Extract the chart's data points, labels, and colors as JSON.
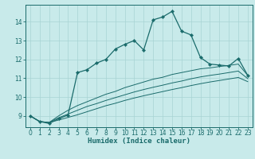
{
  "xlabel": "Humidex (Indice chaleur)",
  "background_color": "#c8eaea",
  "line_color": "#1a6b6b",
  "grid_color": "#a8d4d4",
  "x_data": [
    0,
    1,
    2,
    3,
    4,
    5,
    6,
    7,
    8,
    9,
    10,
    11,
    12,
    13,
    14,
    15,
    16,
    17,
    18,
    19,
    20,
    21,
    22,
    23
  ],
  "y_main": [
    9.0,
    8.7,
    8.6,
    8.85,
    9.05,
    11.3,
    11.45,
    11.8,
    12.0,
    12.55,
    12.8,
    13.0,
    12.5,
    14.1,
    14.25,
    14.55,
    13.5,
    13.3,
    12.1,
    11.75,
    11.7,
    11.65,
    12.05,
    11.15
  ],
  "y_lin1": [
    9.0,
    8.7,
    8.65,
    9.0,
    9.3,
    9.55,
    9.75,
    9.95,
    10.15,
    10.3,
    10.5,
    10.65,
    10.8,
    10.95,
    11.05,
    11.2,
    11.3,
    11.4,
    11.5,
    11.55,
    11.62,
    11.68,
    11.75,
    11.15
  ],
  "y_lin2": [
    9.0,
    8.7,
    8.65,
    8.9,
    9.1,
    9.3,
    9.5,
    9.65,
    9.82,
    9.97,
    10.12,
    10.27,
    10.4,
    10.52,
    10.63,
    10.75,
    10.85,
    10.97,
    11.07,
    11.15,
    11.22,
    11.3,
    11.38,
    10.98
  ],
  "y_lin3": [
    9.0,
    8.7,
    8.65,
    8.78,
    8.92,
    9.06,
    9.22,
    9.38,
    9.54,
    9.67,
    9.82,
    9.95,
    10.07,
    10.18,
    10.29,
    10.4,
    10.5,
    10.61,
    10.71,
    10.8,
    10.88,
    10.96,
    11.04,
    10.82
  ],
  "xlim": [
    -0.5,
    23.5
  ],
  "ylim": [
    8.4,
    14.9
  ],
  "yticks": [
    9,
    10,
    11,
    12,
    13,
    14
  ],
  "xticks": [
    0,
    1,
    2,
    3,
    4,
    5,
    6,
    7,
    8,
    9,
    10,
    11,
    12,
    13,
    14,
    15,
    16,
    17,
    18,
    19,
    20,
    21,
    22,
    23
  ],
  "xlabel_fontsize": 6.5,
  "tick_fontsize": 5.5,
  "linewidth_main": 0.9,
  "linewidth_lin": 0.7,
  "marker_size": 2.2
}
